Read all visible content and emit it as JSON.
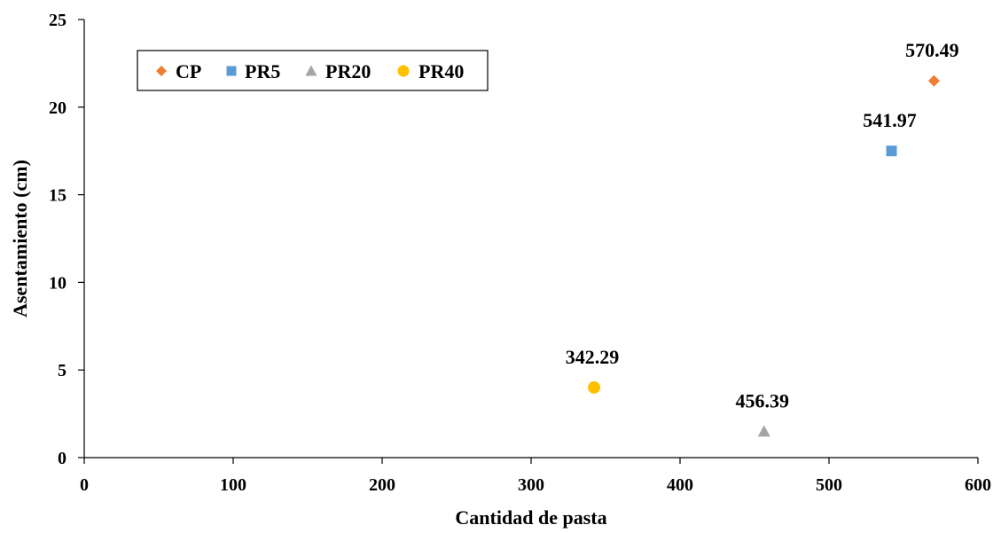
{
  "chart_data": {
    "type": "scatter",
    "title": "",
    "xlabel": "Cantidad de pasta",
    "ylabel": "Asentamiento (cm)",
    "xlim": [
      0,
      600
    ],
    "ylim": [
      0,
      25
    ],
    "xticks": [
      0,
      100,
      200,
      300,
      400,
      500,
      600
    ],
    "yticks": [
      0,
      5,
      10,
      15,
      20,
      25
    ],
    "grid": false,
    "legend_position": "top-left",
    "series": [
      {
        "name": "CP",
        "marker": "diamond",
        "color": "#ED7D31",
        "points": [
          {
            "x": 570.49,
            "y": 21.5,
            "label": "570.49"
          }
        ]
      },
      {
        "name": "PR5",
        "marker": "square",
        "color": "#5B9BD5",
        "points": [
          {
            "x": 541.97,
            "y": 17.5,
            "label": "541.97"
          }
        ]
      },
      {
        "name": "PR20",
        "marker": "triangle",
        "color": "#A5A5A5",
        "points": [
          {
            "x": 456.39,
            "y": 1.5,
            "label": "456.39"
          }
        ]
      },
      {
        "name": "PR40",
        "marker": "circle",
        "color": "#FFC000",
        "points": [
          {
            "x": 342.29,
            "y": 4.0,
            "label": "342.29"
          }
        ]
      }
    ]
  }
}
